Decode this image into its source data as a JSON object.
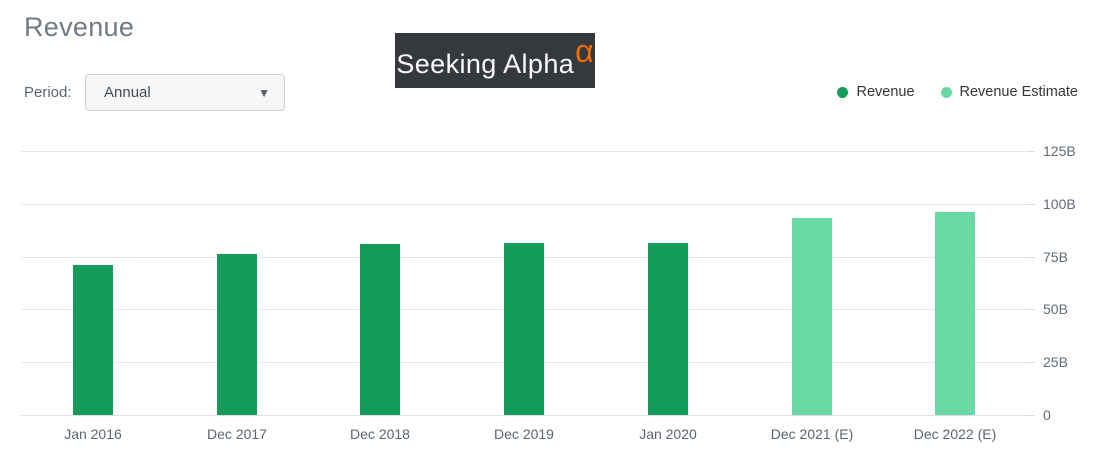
{
  "page": {
    "title": "Revenue"
  },
  "logo": {
    "text": "Seeking Alpha",
    "alpha_glyph": "α"
  },
  "period": {
    "label": "Period:",
    "selected": "Annual",
    "dropdown_arrow": "▼"
  },
  "legend": [
    {
      "label": "Revenue",
      "color": "#149b59"
    },
    {
      "label": "Revenue Estimate",
      "color": "#68d9a3"
    }
  ],
  "chart_data": {
    "type": "bar",
    "title": "Revenue",
    "xlabel": "",
    "ylabel": "",
    "categories": [
      "Jan 2016",
      "Dec 2017",
      "Dec 2018",
      "Dec 2019",
      "Jan 2020",
      "Dec 2021 (E)",
      "Dec 2022 (E)"
    ],
    "series": [
      {
        "name": "Revenue",
        "color": "#149b59",
        "values": [
          71,
          76,
          81,
          81.6,
          81.3,
          null,
          null
        ]
      },
      {
        "name": "Revenue Estimate",
        "color": "#68d9a3",
        "values": [
          null,
          null,
          null,
          null,
          null,
          93.5,
          96.3
        ]
      }
    ],
    "unit": "B",
    "ylim": [
      0,
      125
    ],
    "y_ticks": [
      {
        "v": 0,
        "label": "0"
      },
      {
        "v": 25,
        "label": "25B"
      },
      {
        "v": 50,
        "label": "50B"
      },
      {
        "v": 75,
        "label": "75B"
      },
      {
        "v": 100,
        "label": "100B"
      },
      {
        "v": 125,
        "label": "125B"
      }
    ],
    "grid": true,
    "legend_position": "top-right",
    "y_axis_side": "right"
  },
  "colors": {
    "revenue": "#149b59",
    "revenue_estimate": "#68d9a3",
    "grid": "#e8e8e8",
    "baseline": "#dbe0e7",
    "axis_text": "#5b6570",
    "title_text": "#6f7a85",
    "logo_bg": "#35383d",
    "logo_alpha": "#ef6c05"
  }
}
